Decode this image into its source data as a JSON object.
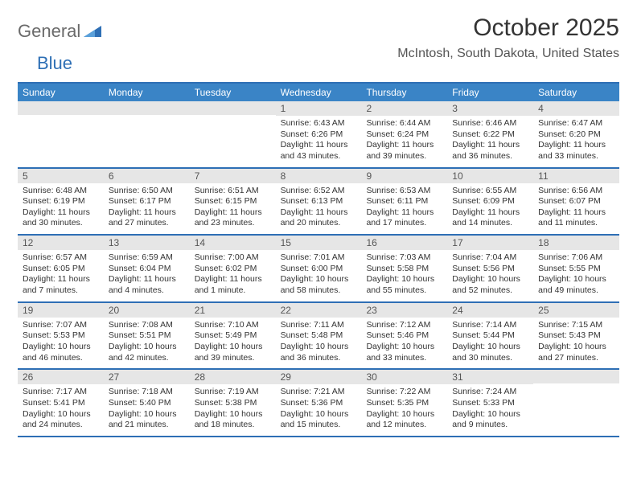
{
  "logo": {
    "text1": "General",
    "text2": "Blue"
  },
  "title": "October 2025",
  "location": "McIntosh, South Dakota, United States",
  "colors": {
    "header_bg": "#3a84c6",
    "header_text": "#ffffff",
    "rule": "#2e6fb5",
    "daynum_bg": "#e6e6e6",
    "body_text": "#333333"
  },
  "weekdays": [
    "Sunday",
    "Monday",
    "Tuesday",
    "Wednesday",
    "Thursday",
    "Friday",
    "Saturday"
  ],
  "weeks": [
    [
      {
        "num": "",
        "sunrise": "",
        "sunset": "",
        "daylight": ""
      },
      {
        "num": "",
        "sunrise": "",
        "sunset": "",
        "daylight": ""
      },
      {
        "num": "",
        "sunrise": "",
        "sunset": "",
        "daylight": ""
      },
      {
        "num": "1",
        "sunrise": "Sunrise: 6:43 AM",
        "sunset": "Sunset: 6:26 PM",
        "daylight": "Daylight: 11 hours and 43 minutes."
      },
      {
        "num": "2",
        "sunrise": "Sunrise: 6:44 AM",
        "sunset": "Sunset: 6:24 PM",
        "daylight": "Daylight: 11 hours and 39 minutes."
      },
      {
        "num": "3",
        "sunrise": "Sunrise: 6:46 AM",
        "sunset": "Sunset: 6:22 PM",
        "daylight": "Daylight: 11 hours and 36 minutes."
      },
      {
        "num": "4",
        "sunrise": "Sunrise: 6:47 AM",
        "sunset": "Sunset: 6:20 PM",
        "daylight": "Daylight: 11 hours and 33 minutes."
      }
    ],
    [
      {
        "num": "5",
        "sunrise": "Sunrise: 6:48 AM",
        "sunset": "Sunset: 6:19 PM",
        "daylight": "Daylight: 11 hours and 30 minutes."
      },
      {
        "num": "6",
        "sunrise": "Sunrise: 6:50 AM",
        "sunset": "Sunset: 6:17 PM",
        "daylight": "Daylight: 11 hours and 27 minutes."
      },
      {
        "num": "7",
        "sunrise": "Sunrise: 6:51 AM",
        "sunset": "Sunset: 6:15 PM",
        "daylight": "Daylight: 11 hours and 23 minutes."
      },
      {
        "num": "8",
        "sunrise": "Sunrise: 6:52 AM",
        "sunset": "Sunset: 6:13 PM",
        "daylight": "Daylight: 11 hours and 20 minutes."
      },
      {
        "num": "9",
        "sunrise": "Sunrise: 6:53 AM",
        "sunset": "Sunset: 6:11 PM",
        "daylight": "Daylight: 11 hours and 17 minutes."
      },
      {
        "num": "10",
        "sunrise": "Sunrise: 6:55 AM",
        "sunset": "Sunset: 6:09 PM",
        "daylight": "Daylight: 11 hours and 14 minutes."
      },
      {
        "num": "11",
        "sunrise": "Sunrise: 6:56 AM",
        "sunset": "Sunset: 6:07 PM",
        "daylight": "Daylight: 11 hours and 11 minutes."
      }
    ],
    [
      {
        "num": "12",
        "sunrise": "Sunrise: 6:57 AM",
        "sunset": "Sunset: 6:05 PM",
        "daylight": "Daylight: 11 hours and 7 minutes."
      },
      {
        "num": "13",
        "sunrise": "Sunrise: 6:59 AM",
        "sunset": "Sunset: 6:04 PM",
        "daylight": "Daylight: 11 hours and 4 minutes."
      },
      {
        "num": "14",
        "sunrise": "Sunrise: 7:00 AM",
        "sunset": "Sunset: 6:02 PM",
        "daylight": "Daylight: 11 hours and 1 minute."
      },
      {
        "num": "15",
        "sunrise": "Sunrise: 7:01 AM",
        "sunset": "Sunset: 6:00 PM",
        "daylight": "Daylight: 10 hours and 58 minutes."
      },
      {
        "num": "16",
        "sunrise": "Sunrise: 7:03 AM",
        "sunset": "Sunset: 5:58 PM",
        "daylight": "Daylight: 10 hours and 55 minutes."
      },
      {
        "num": "17",
        "sunrise": "Sunrise: 7:04 AM",
        "sunset": "Sunset: 5:56 PM",
        "daylight": "Daylight: 10 hours and 52 minutes."
      },
      {
        "num": "18",
        "sunrise": "Sunrise: 7:06 AM",
        "sunset": "Sunset: 5:55 PM",
        "daylight": "Daylight: 10 hours and 49 minutes."
      }
    ],
    [
      {
        "num": "19",
        "sunrise": "Sunrise: 7:07 AM",
        "sunset": "Sunset: 5:53 PM",
        "daylight": "Daylight: 10 hours and 46 minutes."
      },
      {
        "num": "20",
        "sunrise": "Sunrise: 7:08 AM",
        "sunset": "Sunset: 5:51 PM",
        "daylight": "Daylight: 10 hours and 42 minutes."
      },
      {
        "num": "21",
        "sunrise": "Sunrise: 7:10 AM",
        "sunset": "Sunset: 5:49 PM",
        "daylight": "Daylight: 10 hours and 39 minutes."
      },
      {
        "num": "22",
        "sunrise": "Sunrise: 7:11 AM",
        "sunset": "Sunset: 5:48 PM",
        "daylight": "Daylight: 10 hours and 36 minutes."
      },
      {
        "num": "23",
        "sunrise": "Sunrise: 7:12 AM",
        "sunset": "Sunset: 5:46 PM",
        "daylight": "Daylight: 10 hours and 33 minutes."
      },
      {
        "num": "24",
        "sunrise": "Sunrise: 7:14 AM",
        "sunset": "Sunset: 5:44 PM",
        "daylight": "Daylight: 10 hours and 30 minutes."
      },
      {
        "num": "25",
        "sunrise": "Sunrise: 7:15 AM",
        "sunset": "Sunset: 5:43 PM",
        "daylight": "Daylight: 10 hours and 27 minutes."
      }
    ],
    [
      {
        "num": "26",
        "sunrise": "Sunrise: 7:17 AM",
        "sunset": "Sunset: 5:41 PM",
        "daylight": "Daylight: 10 hours and 24 minutes."
      },
      {
        "num": "27",
        "sunrise": "Sunrise: 7:18 AM",
        "sunset": "Sunset: 5:40 PM",
        "daylight": "Daylight: 10 hours and 21 minutes."
      },
      {
        "num": "28",
        "sunrise": "Sunrise: 7:19 AM",
        "sunset": "Sunset: 5:38 PM",
        "daylight": "Daylight: 10 hours and 18 minutes."
      },
      {
        "num": "29",
        "sunrise": "Sunrise: 7:21 AM",
        "sunset": "Sunset: 5:36 PM",
        "daylight": "Daylight: 10 hours and 15 minutes."
      },
      {
        "num": "30",
        "sunrise": "Sunrise: 7:22 AM",
        "sunset": "Sunset: 5:35 PM",
        "daylight": "Daylight: 10 hours and 12 minutes."
      },
      {
        "num": "31",
        "sunrise": "Sunrise: 7:24 AM",
        "sunset": "Sunset: 5:33 PM",
        "daylight": "Daylight: 10 hours and 9 minutes."
      },
      {
        "num": "",
        "sunrise": "",
        "sunset": "",
        "daylight": ""
      }
    ]
  ]
}
